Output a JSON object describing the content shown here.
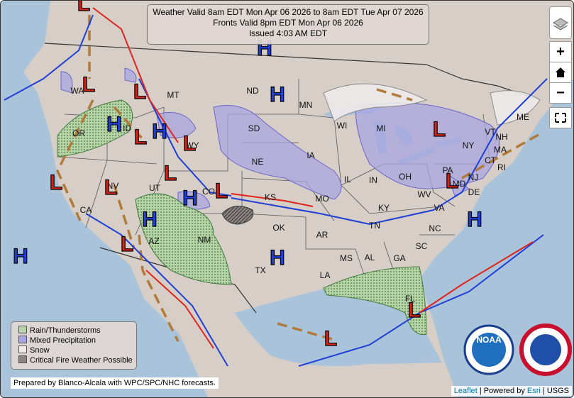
{
  "header": {
    "line1": "Weather Valid 8am EDT Mon Apr 06 2026 to 8am EDT Tue Apr 07 2026",
    "line2": "Fronts Valid 8pm EDT Mon Apr 06 2026",
    "line3": "Issued 4:03 AM EDT"
  },
  "states": [
    "WA",
    "OR",
    "CA",
    "ID",
    "NV",
    "MT",
    "WY",
    "UT",
    "AZ",
    "CO",
    "NM",
    "ND",
    "SD",
    "NE",
    "KS",
    "OK",
    "TX",
    "MN",
    "IA",
    "MO",
    "AR",
    "LA",
    "WI",
    "IL",
    "MI",
    "IN",
    "OH",
    "KY",
    "TN",
    "MS",
    "AL",
    "GA",
    "FL",
    "SC",
    "NC",
    "VA",
    "WV",
    "PA",
    "NY",
    "VT",
    "NH",
    "ME",
    "MA",
    "CT",
    "RI",
    "NJ",
    "DE",
    "MD"
  ],
  "pressure_centers": [
    "H",
    "H",
    "H",
    "H",
    "H",
    "H",
    "H",
    "H",
    "H",
    "L",
    "L",
    "L",
    "L",
    "L",
    "L",
    "L",
    "L",
    "L",
    "L",
    "L",
    "L",
    "L",
    "L"
  ],
  "legend": [
    "Rain/Thunderstorms",
    "Mixed Precipitation",
    "Snow",
    "Critical Fire Weather Possible"
  ],
  "controls": {
    "zoom_in": "+",
    "zoom_out": "−"
  },
  "logos": {
    "noaa": "NOAA"
  },
  "credit": "Prepared by Blanco-Alcala with WPC/SPC/NHC forecasts.",
  "attribution": {
    "leaflet": "Leaflet",
    "powered": "| Powered by",
    "esri": "Esri",
    "usgs": "| USGS"
  }
}
